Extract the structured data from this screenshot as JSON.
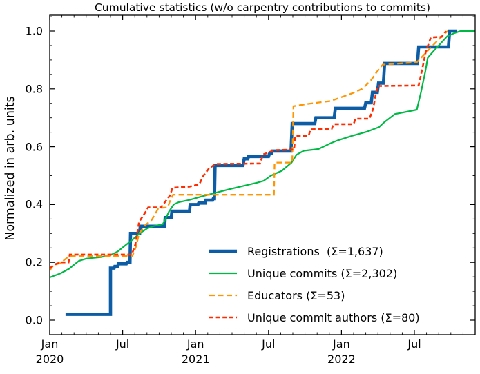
{
  "title": "Cumulative statistics (w/o carpentry contributions to commits)",
  "chart_data": {
    "type": "line",
    "title": "Cumulative statistics (w/o carpentry contributions to commits)",
    "xlabel": "",
    "ylabel": "Normalized in arb. units",
    "x_unit": "months since 2020-01-01",
    "xlim": [
      0,
      35
    ],
    "ylim": [
      -0.05,
      1.055
    ],
    "grid": false,
    "legend_position": "lower right",
    "tick_style": "inward, all four sides, monthly minor ticks on x, 0.05 minor ticks on y",
    "x_major_ticks": [
      {
        "m": 0,
        "label": "Jan",
        "year": "2020"
      },
      {
        "m": 6,
        "label": "Jul"
      },
      {
        "m": 12,
        "label": "Jan",
        "year": "2021"
      },
      {
        "m": 18,
        "label": "Jul"
      },
      {
        "m": 24,
        "label": "Jan",
        "year": "2022"
      },
      {
        "m": 30,
        "label": "Jul"
      }
    ],
    "y_major_ticks": [
      {
        "v": 0.0,
        "label": "0.0"
      },
      {
        "v": 0.2,
        "label": "0.2"
      },
      {
        "v": 0.4,
        "label": "0.4"
      },
      {
        "v": 0.6,
        "label": "0.6"
      },
      {
        "v": 0.8,
        "label": "0.8"
      },
      {
        "v": 1.0,
        "label": "1.0"
      }
    ],
    "series": [
      {
        "name": "registrations",
        "legend_label": "Registrations  (Σ=1,637)",
        "total": 1637,
        "color": "#0C5DA5",
        "width": 4.6,
        "dash": null,
        "points": [
          [
            1.3,
            0.02
          ],
          [
            5.0,
            0.02
          ],
          [
            5.0,
            0.18
          ],
          [
            5.3,
            0.18
          ],
          [
            5.35,
            0.186
          ],
          [
            5.6,
            0.186
          ],
          [
            5.65,
            0.195
          ],
          [
            6.3,
            0.195
          ],
          [
            6.35,
            0.2
          ],
          [
            6.6,
            0.2
          ],
          [
            6.65,
            0.3
          ],
          [
            7.4,
            0.3
          ],
          [
            7.45,
            0.325
          ],
          [
            9.45,
            0.325
          ],
          [
            9.5,
            0.355
          ],
          [
            10.0,
            0.355
          ],
          [
            10.05,
            0.377
          ],
          [
            11.5,
            0.377
          ],
          [
            11.55,
            0.4
          ],
          [
            12.2,
            0.4
          ],
          [
            12.25,
            0.405
          ],
          [
            12.8,
            0.405
          ],
          [
            12.85,
            0.415
          ],
          [
            13.4,
            0.415
          ],
          [
            13.45,
            0.42
          ],
          [
            13.55,
            0.42
          ],
          [
            13.6,
            0.535
          ],
          [
            15.9,
            0.535
          ],
          [
            16.0,
            0.558
          ],
          [
            16.3,
            0.558
          ],
          [
            16.35,
            0.566
          ],
          [
            18.0,
            0.566
          ],
          [
            18.1,
            0.578
          ],
          [
            18.25,
            0.578
          ],
          [
            18.3,
            0.585
          ],
          [
            19.85,
            0.585
          ],
          [
            19.95,
            0.68
          ],
          [
            21.8,
            0.68
          ],
          [
            21.9,
            0.7
          ],
          [
            23.4,
            0.7
          ],
          [
            23.5,
            0.733
          ],
          [
            25.9,
            0.733
          ],
          [
            26.0,
            0.752
          ],
          [
            26.45,
            0.752
          ],
          [
            26.55,
            0.788
          ],
          [
            26.95,
            0.788
          ],
          [
            27.05,
            0.82
          ],
          [
            27.45,
            0.82
          ],
          [
            27.55,
            0.888
          ],
          [
            30.25,
            0.888
          ],
          [
            30.35,
            0.945
          ],
          [
            32.8,
            0.945
          ],
          [
            32.9,
            1.0
          ],
          [
            33.5,
            1.0
          ]
        ]
      },
      {
        "name": "unique-commits",
        "legend_label": "Unique commits (Σ=2,302)",
        "total": 2302,
        "color": "#00B945",
        "width": 2.2,
        "dash": null,
        "points": [
          [
            0,
            0.148
          ],
          [
            0.9,
            0.162
          ],
          [
            1.6,
            0.178
          ],
          [
            2.0,
            0.192
          ],
          [
            2.4,
            0.205
          ],
          [
            3.0,
            0.213
          ],
          [
            4.2,
            0.218
          ],
          [
            5.0,
            0.225
          ],
          [
            5.6,
            0.238
          ],
          [
            6.2,
            0.258
          ],
          [
            6.8,
            0.278
          ],
          [
            7.4,
            0.3
          ],
          [
            8.0,
            0.317
          ],
          [
            8.6,
            0.326
          ],
          [
            9.3,
            0.332
          ],
          [
            9.55,
            0.352
          ],
          [
            9.8,
            0.375
          ],
          [
            10.2,
            0.4
          ],
          [
            10.6,
            0.408
          ],
          [
            11.5,
            0.416
          ],
          [
            12.5,
            0.428
          ],
          [
            13.6,
            0.44
          ],
          [
            14.7,
            0.452
          ],
          [
            15.9,
            0.464
          ],
          [
            17.1,
            0.476
          ],
          [
            17.6,
            0.482
          ],
          [
            18.2,
            0.5
          ],
          [
            19.1,
            0.517
          ],
          [
            19.9,
            0.545
          ],
          [
            20.3,
            0.572
          ],
          [
            20.9,
            0.586
          ],
          [
            22.1,
            0.592
          ],
          [
            23.1,
            0.612
          ],
          [
            23.7,
            0.622
          ],
          [
            24.9,
            0.638
          ],
          [
            26.1,
            0.652
          ],
          [
            27.1,
            0.668
          ],
          [
            27.5,
            0.684
          ],
          [
            28.4,
            0.713
          ],
          [
            29.5,
            0.722
          ],
          [
            30.2,
            0.728
          ],
          [
            30.55,
            0.79
          ],
          [
            30.9,
            0.86
          ],
          [
            31.1,
            0.908
          ],
          [
            31.6,
            0.932
          ],
          [
            32.0,
            0.95
          ],
          [
            32.7,
            0.982
          ],
          [
            33.3,
            0.993
          ],
          [
            33.8,
            1.0
          ],
          [
            35.0,
            1.0
          ]
        ]
      },
      {
        "name": "educators",
        "legend_label": "Educators (Σ=53)",
        "total": 53,
        "color": "#FF9500",
        "width": 2.3,
        "dash": "8 4.5",
        "points": [
          [
            0,
            0.172
          ],
          [
            0.3,
            0.19
          ],
          [
            0.9,
            0.198
          ],
          [
            1.6,
            0.222
          ],
          [
            6.8,
            0.222
          ],
          [
            7.1,
            0.255
          ],
          [
            7.35,
            0.3
          ],
          [
            7.9,
            0.33
          ],
          [
            8.4,
            0.347
          ],
          [
            8.95,
            0.388
          ],
          [
            9.7,
            0.39
          ],
          [
            9.95,
            0.418
          ],
          [
            10.15,
            0.434
          ],
          [
            18.45,
            0.434
          ],
          [
            18.5,
            0.545
          ],
          [
            19.95,
            0.545
          ],
          [
            20.05,
            0.74
          ],
          [
            21.2,
            0.748
          ],
          [
            23.1,
            0.758
          ],
          [
            24.9,
            0.785
          ],
          [
            25.7,
            0.8
          ],
          [
            26.4,
            0.828
          ],
          [
            26.9,
            0.858
          ],
          [
            27.4,
            0.884
          ],
          [
            30.2,
            0.892
          ],
          [
            31.4,
            0.945
          ],
          [
            32.4,
            0.988
          ],
          [
            32.75,
            1.0
          ]
        ]
      },
      {
        "name": "unique-commit-authors",
        "legend_label": "Unique commit authors (Σ=80)",
        "total": 80,
        "color": "#FF2C00",
        "width": 2.6,
        "dash": "6 3.6",
        "points": [
          [
            0,
            0.179
          ],
          [
            0.35,
            0.192
          ],
          [
            0.9,
            0.2
          ],
          [
            1.55,
            0.2
          ],
          [
            1.65,
            0.227
          ],
          [
            6.75,
            0.227
          ],
          [
            7.05,
            0.263
          ],
          [
            7.35,
            0.34
          ],
          [
            7.85,
            0.372
          ],
          [
            8.1,
            0.39
          ],
          [
            9.15,
            0.39
          ],
          [
            9.6,
            0.415
          ],
          [
            9.9,
            0.432
          ],
          [
            10.1,
            0.458
          ],
          [
            11.5,
            0.462
          ],
          [
            12.3,
            0.47
          ],
          [
            12.65,
            0.5
          ],
          [
            13.1,
            0.525
          ],
          [
            13.65,
            0.54
          ],
          [
            17.3,
            0.542
          ],
          [
            17.55,
            0.573
          ],
          [
            18.5,
            0.588
          ],
          [
            20.1,
            0.59
          ],
          [
            20.2,
            0.637
          ],
          [
            21.3,
            0.637
          ],
          [
            21.45,
            0.66
          ],
          [
            23.2,
            0.662
          ],
          [
            23.35,
            0.678
          ],
          [
            25.0,
            0.678
          ],
          [
            25.15,
            0.697
          ],
          [
            26.3,
            0.697
          ],
          [
            26.6,
            0.73
          ],
          [
            26.95,
            0.81
          ],
          [
            30.35,
            0.812
          ],
          [
            30.55,
            0.85
          ],
          [
            30.95,
            0.93
          ],
          [
            31.35,
            0.978
          ],
          [
            32.25,
            0.98
          ],
          [
            32.6,
            1.0
          ]
        ]
      }
    ]
  }
}
